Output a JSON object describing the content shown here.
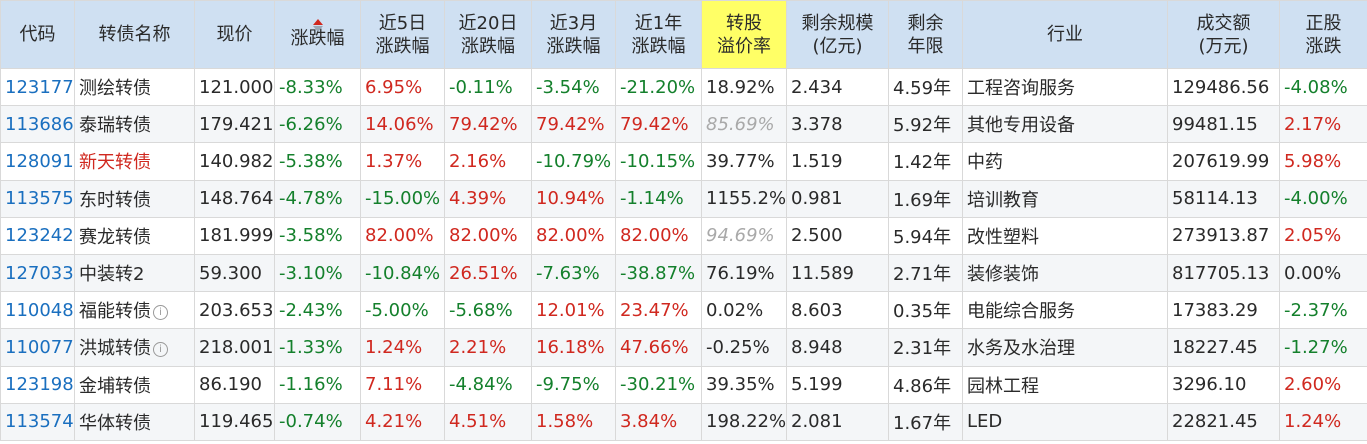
{
  "headers": {
    "code": "代码",
    "name": "转债名称",
    "price": "现价",
    "change": "涨跌幅",
    "chg5d": [
      "近5日",
      "涨跌幅"
    ],
    "chg20d": [
      "近20日",
      "涨跌幅"
    ],
    "chg3m": [
      "近3月",
      "涨跌幅"
    ],
    "chg1y": [
      "近1年",
      "涨跌幅"
    ],
    "premium": [
      "转股",
      "溢价率"
    ],
    "scale": [
      "剩余规模",
      "(亿元)"
    ],
    "years": [
      "剩余",
      "年限"
    ],
    "industry": "行业",
    "volume": [
      "成交额",
      "(万元)"
    ],
    "stock_chg": [
      "正股",
      "涨跌"
    ]
  },
  "colors": {
    "header_bg": "#cfe0f2",
    "highlight_header_bg": "#ffff66",
    "up": "#d0281f",
    "down": "#14802c",
    "code": "#1a6fbf"
  },
  "rows": [
    {
      "code": "123177",
      "name": "测绘转债",
      "name_red": false,
      "info": false,
      "price": "121.000",
      "change": "-8.33%",
      "chg5d": "6.95%",
      "chg20d": "-0.11%",
      "chg3m": "-3.54%",
      "chg1y": "-21.20%",
      "premium": "18.92%",
      "premium_muted": false,
      "scale": "2.434",
      "years": "4.59年",
      "industry": "工程咨询服务",
      "volume": "129486.56",
      "stock_chg": "-4.08%"
    },
    {
      "code": "113686",
      "name": "泰瑞转债",
      "name_red": false,
      "info": false,
      "price": "179.421",
      "change": "-6.26%",
      "chg5d": "14.06%",
      "chg20d": "79.42%",
      "chg3m": "79.42%",
      "chg1y": "79.42%",
      "premium": "85.69%",
      "premium_muted": true,
      "scale": "3.378",
      "years": "5.92年",
      "industry": "其他专用设备",
      "volume": "99481.15",
      "stock_chg": "2.17%"
    },
    {
      "code": "128091",
      "name": "新天转债",
      "name_red": true,
      "info": false,
      "price": "140.982",
      "change": "-5.38%",
      "chg5d": "1.37%",
      "chg20d": "2.16%",
      "chg3m": "-10.79%",
      "chg1y": "-10.15%",
      "premium": "39.77%",
      "premium_muted": false,
      "scale": "1.519",
      "years": "1.42年",
      "industry": "中药",
      "volume": "207619.99",
      "stock_chg": "5.98%"
    },
    {
      "code": "113575",
      "name": "东时转债",
      "name_red": false,
      "info": false,
      "price": "148.764",
      "change": "-4.78%",
      "chg5d": "-15.00%",
      "chg20d": "4.39%",
      "chg3m": "10.94%",
      "chg1y": "-1.14%",
      "premium": "1155.2%",
      "premium_muted": false,
      "scale": "0.981",
      "years": "1.69年",
      "industry": "培训教育",
      "volume": "58114.13",
      "stock_chg": "-4.00%"
    },
    {
      "code": "123242",
      "name": "赛龙转债",
      "name_red": false,
      "info": false,
      "price": "181.999",
      "change": "-3.58%",
      "chg5d": "82.00%",
      "chg20d": "82.00%",
      "chg3m": "82.00%",
      "chg1y": "82.00%",
      "premium": "94.69%",
      "premium_muted": true,
      "scale": "2.500",
      "years": "5.94年",
      "industry": "改性塑料",
      "volume": "273913.87",
      "stock_chg": "2.05%"
    },
    {
      "code": "127033",
      "name": "中装转2",
      "name_red": false,
      "info": false,
      "price": "59.300",
      "change": "-3.10%",
      "chg5d": "-10.84%",
      "chg20d": "26.51%",
      "chg3m": "-7.63%",
      "chg1y": "-38.87%",
      "premium": "76.19%",
      "premium_muted": false,
      "scale": "11.589",
      "years": "2.71年",
      "industry": "装修装饰",
      "volume": "817705.13",
      "stock_chg": "0.00%"
    },
    {
      "code": "110048",
      "name": "福能转债",
      "name_red": false,
      "info": true,
      "price": "203.653",
      "change": "-2.43%",
      "chg5d": "-5.00%",
      "chg20d": "-5.68%",
      "chg3m": "12.01%",
      "chg1y": "23.47%",
      "premium": "0.02%",
      "premium_muted": false,
      "scale": "8.603",
      "years": "0.35年",
      "industry": "电能综合服务",
      "volume": "17383.29",
      "stock_chg": "-2.37%"
    },
    {
      "code": "110077",
      "name": "洪城转债",
      "name_red": false,
      "info": true,
      "price": "218.001",
      "change": "-1.33%",
      "chg5d": "1.24%",
      "chg20d": "2.21%",
      "chg3m": "16.18%",
      "chg1y": "47.66%",
      "premium": "-0.25%",
      "premium_muted": false,
      "scale": "8.948",
      "years": "2.31年",
      "industry": "水务及水治理",
      "volume": "18227.45",
      "stock_chg": "-1.27%"
    },
    {
      "code": "123198",
      "name": "金埔转债",
      "name_red": false,
      "info": false,
      "price": "86.190",
      "change": "-1.16%",
      "chg5d": "7.11%",
      "chg20d": "-4.84%",
      "chg3m": "-9.75%",
      "chg1y": "-30.21%",
      "premium": "39.35%",
      "premium_muted": false,
      "scale": "5.199",
      "years": "4.86年",
      "industry": "园林工程",
      "volume": "3296.10",
      "stock_chg": "2.60%"
    },
    {
      "code": "113574",
      "name": "华体转债",
      "name_red": false,
      "info": false,
      "price": "119.465",
      "change": "-0.74%",
      "chg5d": "4.21%",
      "chg20d": "4.51%",
      "chg3m": "1.58%",
      "chg1y": "3.84%",
      "premium": "198.22%",
      "premium_muted": false,
      "scale": "2.081",
      "years": "1.67年",
      "industry": "LED",
      "volume": "22821.45",
      "stock_chg": "1.24%"
    }
  ]
}
